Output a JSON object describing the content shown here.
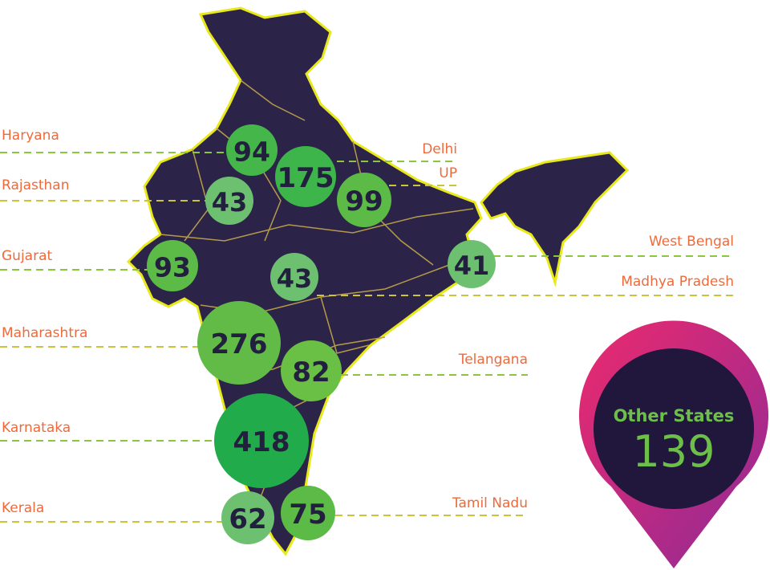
{
  "colors": {
    "land": "#2b2448",
    "border": "#e8e81a",
    "state_lines": "#b59a4a",
    "label": "#ef6a3a",
    "pin_gradient": [
      "#ec2a6e",
      "#8e2a96"
    ],
    "pin_inner": "#21163b",
    "pin_text": "#6cc04a"
  },
  "states": [
    {
      "name": "Haryana",
      "value": "94",
      "color": "#45b649",
      "side": "left"
    },
    {
      "name": "Rajasthan",
      "value": "43",
      "color": "#6cc070",
      "side": "left"
    },
    {
      "name": "Gujarat",
      "value": "93",
      "color": "#5cba47",
      "side": "left"
    },
    {
      "name": "Maharashtra",
      "value": "276",
      "color": "#62bb46",
      "side": "left"
    },
    {
      "name": "Karnataka",
      "value": "418",
      "color": "#22ab4a",
      "side": "left"
    },
    {
      "name": "Kerala",
      "value": "62",
      "color": "#6cc070",
      "side": "left"
    },
    {
      "name": "Delhi",
      "value": "175",
      "color": "#3db54a",
      "side": "right"
    },
    {
      "name": "UP",
      "value": "99",
      "color": "#5cba47",
      "side": "right"
    },
    {
      "name": "West Bengal",
      "value": "41",
      "color": "#6cc070",
      "side": "right"
    },
    {
      "name": "Madhya Pradesh",
      "value": "43",
      "color": "#6cc070",
      "side": "right"
    },
    {
      "name": "Telangana",
      "value": "82",
      "color": "#6abf45",
      "side": "right"
    },
    {
      "name": "Tamil Nadu",
      "value": "75",
      "color": "#5cba47",
      "side": "right"
    }
  ],
  "other": {
    "title": "Other States",
    "value": "139"
  }
}
